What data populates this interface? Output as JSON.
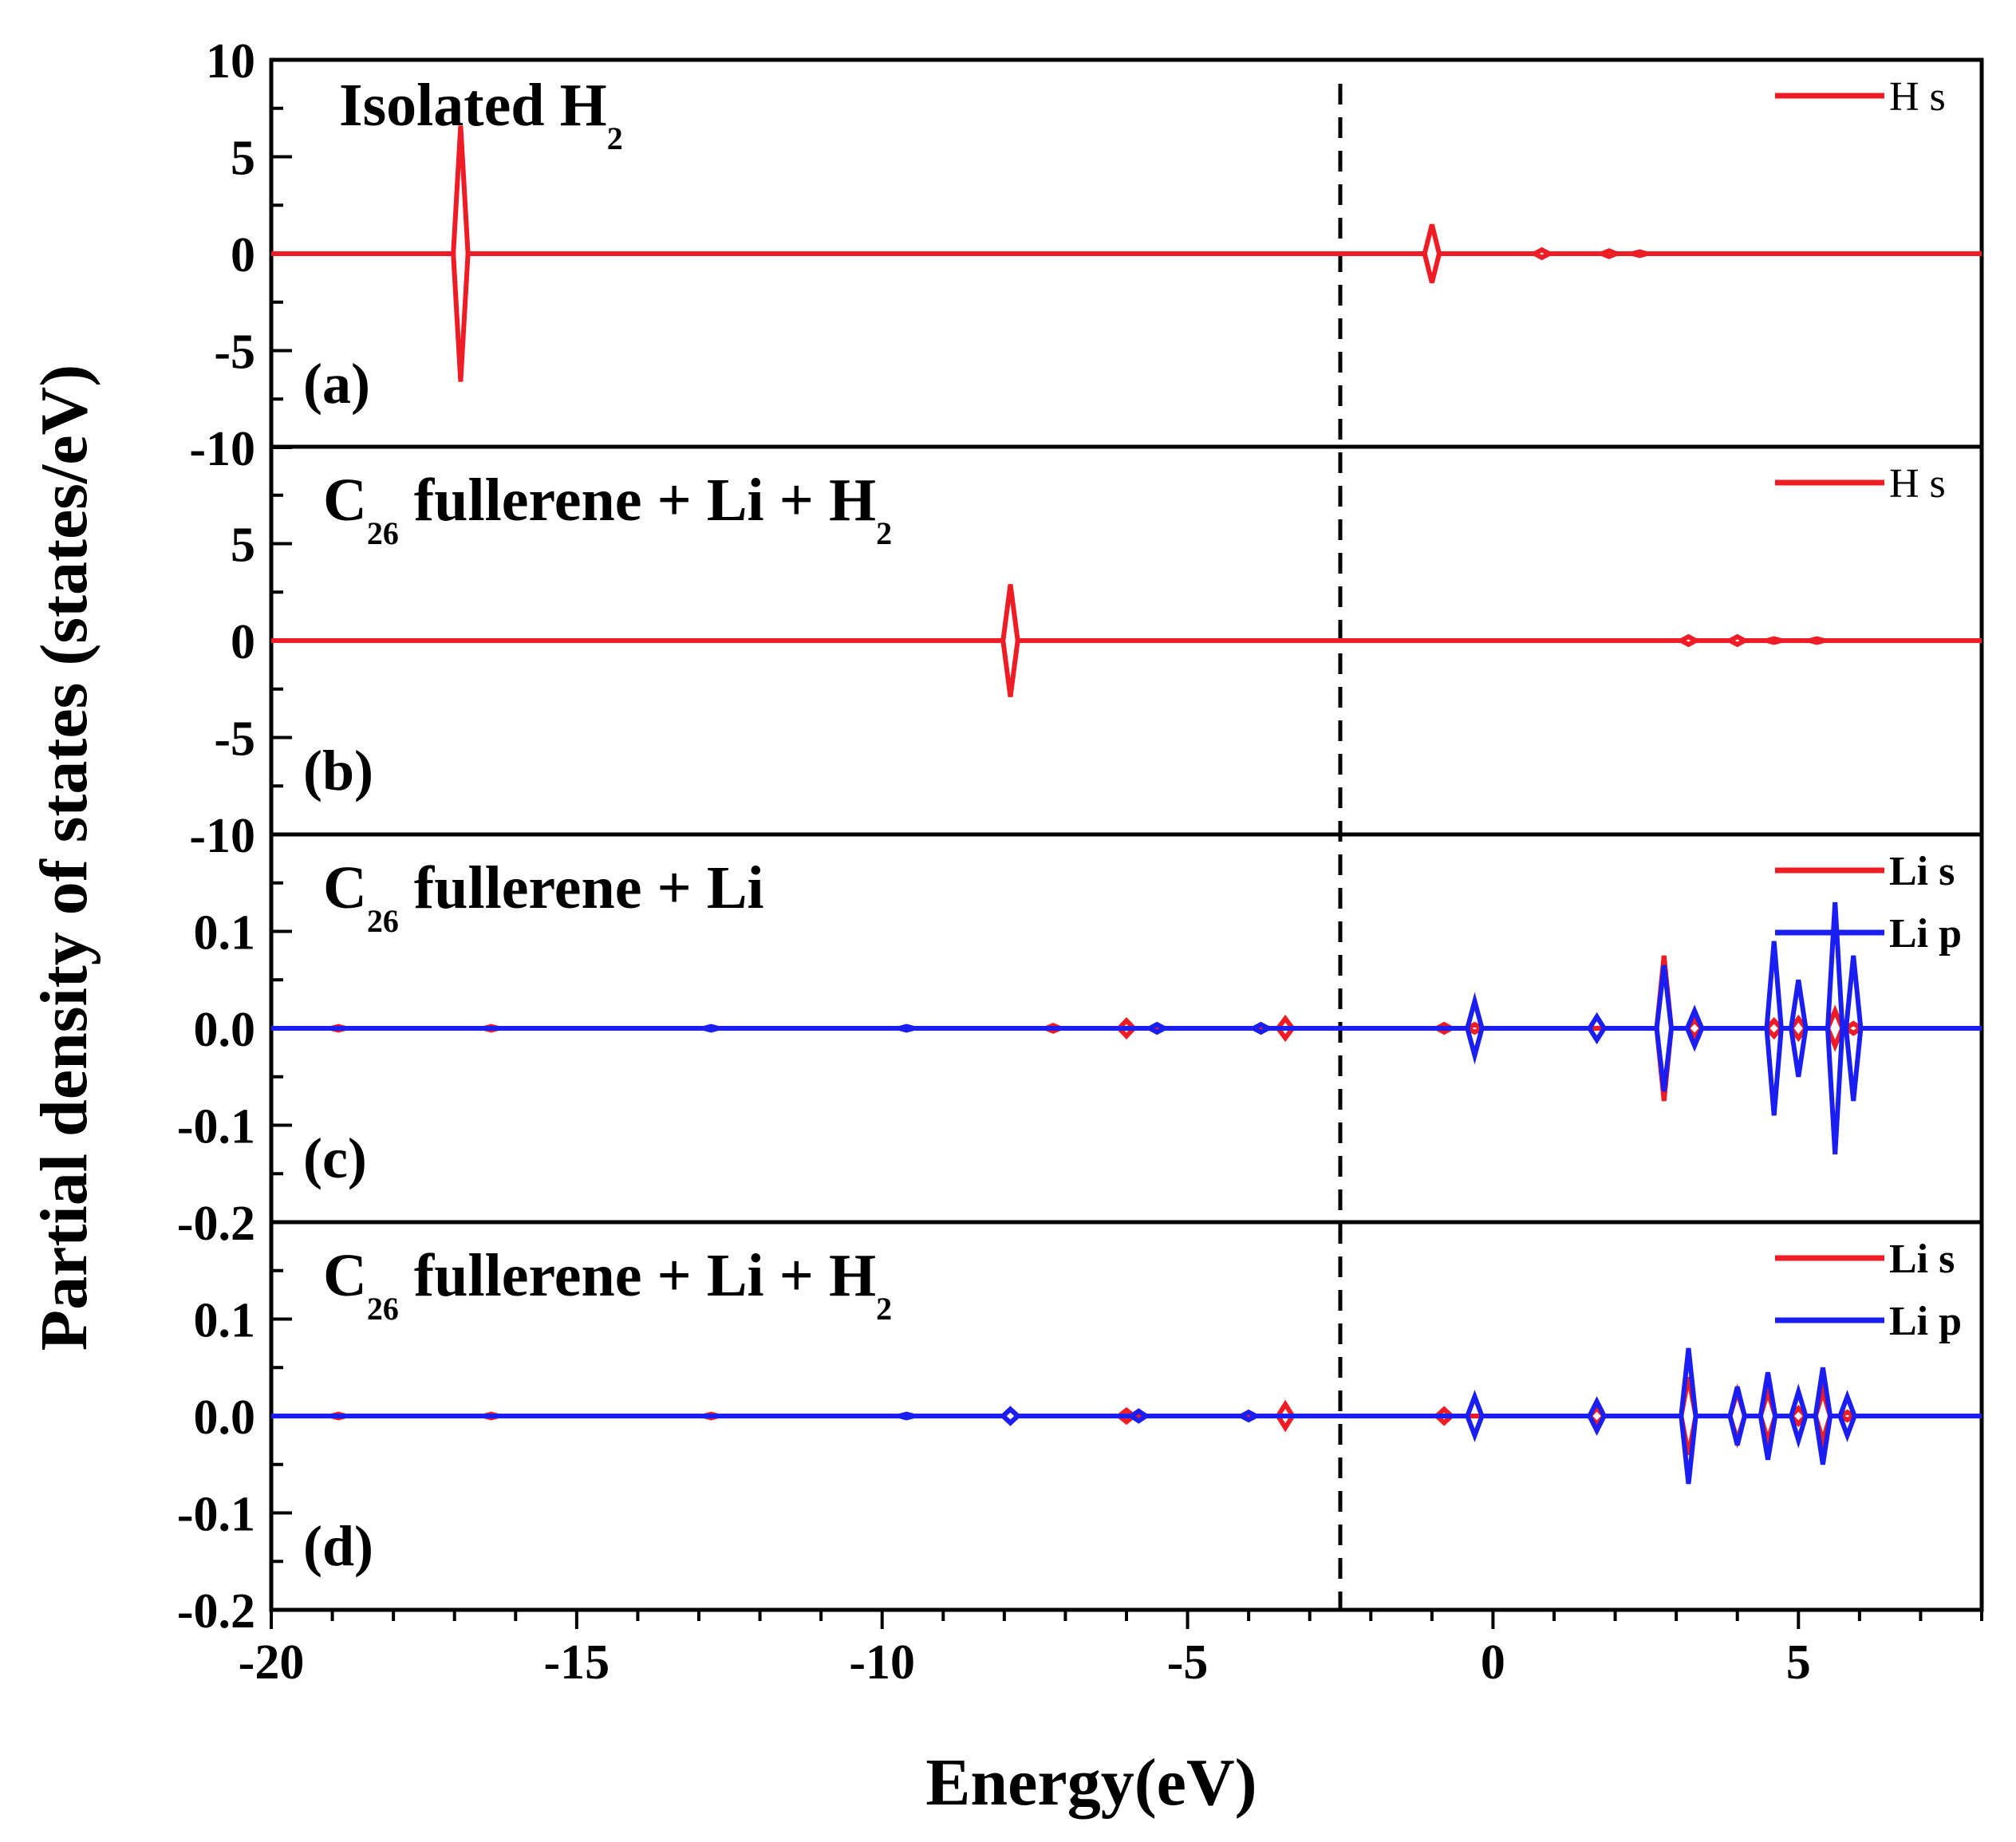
{
  "chart_data": {
    "type": "line",
    "xlabel": "Energy(eV)",
    "ylabel": "Partial density of states (states/eV)",
    "x_ticks": [
      "-20",
      "-15",
      "-10",
      "-5",
      "0",
      "5"
    ],
    "xlim": [
      -20,
      8
    ],
    "fermi_level": -2.5,
    "colors": {
      "H s": "#ee1c24",
      "Li s": "#ee1c24",
      "Li p": "#1b1ef0"
    },
    "panels": [
      {
        "label": "(a)",
        "title_main": "Isolated H",
        "title_sub": "2",
        "title_tail": "",
        "ylim": [
          -10,
          10
        ],
        "y_ticks": [
          "10",
          "5",
          "0",
          "-5",
          "-10"
        ],
        "legend": [
          {
            "name": "H s"
          }
        ],
        "series": [
          {
            "name": "H s",
            "peaks": [
              [
                -16.9,
                6.6
              ],
              [
                -1.0,
                1.5
              ],
              [
                0.8,
                0.2
              ],
              [
                1.9,
                0.15
              ],
              [
                2.4,
                0.1
              ]
            ]
          }
        ]
      },
      {
        "label": "(b)",
        "title_main": "C",
        "title_sub": "26",
        "title_tail": " fullerene + Li + H",
        "title_sub2": "2",
        "ylim": [
          -10,
          10
        ],
        "y_ticks": [
          "",
          "5",
          "0",
          "-5",
          "-10"
        ],
        "legend": [
          {
            "name": "H s"
          }
        ],
        "series": [
          {
            "name": "H s",
            "peaks": [
              [
                -7.9,
                2.9
              ],
              [
                3.2,
                0.2
              ],
              [
                4.0,
                0.2
              ],
              [
                4.6,
                0.1
              ],
              [
                5.3,
                0.1
              ]
            ]
          }
        ]
      },
      {
        "label": "(c)",
        "title_main": "C",
        "title_sub": "26",
        "title_tail": " fullerene + Li",
        "title_sub2": "",
        "ylim": [
          -0.2,
          0.2
        ],
        "y_ticks": [
          "",
          "0.1",
          "0.0",
          "-0.1",
          "-0.2"
        ],
        "legend": [
          {
            "name": "Li s"
          },
          {
            "name": "Li p"
          }
        ],
        "series": [
          {
            "name": "Li s",
            "peaks": [
              [
                -18.9,
                0.002
              ],
              [
                -16.4,
                0.002
              ],
              [
                -7.2,
                0.003
              ],
              [
                -6.0,
                0.008
              ],
              [
                -3.4,
                0.01
              ],
              [
                -0.8,
                0.004
              ],
              [
                -0.3,
                0.004
              ],
              [
                2.8,
                0.075
              ],
              [
                3.3,
                0.008
              ],
              [
                4.6,
                0.008
              ],
              [
                5.0,
                0.01
              ],
              [
                5.6,
                0.018
              ],
              [
                5.9,
                0.005
              ]
            ]
          },
          {
            "name": "Li p",
            "peaks": [
              [
                -12.8,
                0.002
              ],
              [
                -9.6,
                0.002
              ],
              [
                -5.5,
                0.004
              ],
              [
                -3.8,
                0.004
              ],
              [
                -0.3,
                0.028
              ],
              [
                1.7,
                0.012
              ],
              [
                2.8,
                0.065
              ],
              [
                3.3,
                0.018
              ],
              [
                4.6,
                0.09
              ],
              [
                5.0,
                0.05
              ],
              [
                5.6,
                0.13
              ],
              [
                5.9,
                0.075
              ]
            ]
          }
        ]
      },
      {
        "label": "(d)",
        "title_main": "C",
        "title_sub": "26",
        "title_tail": " fullerene + Li + H",
        "title_sub2": "2",
        "ylim": [
          -0.2,
          0.2
        ],
        "y_ticks": [
          "",
          "0.1",
          "0.0",
          "-0.1",
          "-0.2"
        ],
        "legend": [
          {
            "name": "Li s"
          },
          {
            "name": "Li p"
          }
        ],
        "series": [
          {
            "name": "Li s",
            "peaks": [
              [
                -18.9,
                0.002
              ],
              [
                -16.4,
                0.002
              ],
              [
                -12.8,
                0.002
              ],
              [
                -7.9,
                0.007
              ],
              [
                -6.0,
                0.006
              ],
              [
                -3.4,
                0.012
              ],
              [
                -0.8,
                0.007
              ],
              [
                1.7,
                0.008
              ],
              [
                3.2,
                0.04
              ],
              [
                4.0,
                0.025
              ],
              [
                4.5,
                0.025
              ],
              [
                5.0,
                0.008
              ],
              [
                5.4,
                0.025
              ],
              [
                5.8,
                0.004
              ]
            ]
          },
          {
            "name": "Li p",
            "peaks": [
              [
                -9.6,
                0.002
              ],
              [
                -7.9,
                0.007
              ],
              [
                -5.8,
                0.005
              ],
              [
                -4.0,
                0.004
              ],
              [
                -0.3,
                0.02
              ],
              [
                1.7,
                0.015
              ],
              [
                3.2,
                0.07
              ],
              [
                4.0,
                0.03
              ],
              [
                4.5,
                0.045
              ],
              [
                5.0,
                0.025
              ],
              [
                5.4,
                0.05
              ],
              [
                5.8,
                0.02
              ]
            ]
          }
        ]
      }
    ]
  }
}
